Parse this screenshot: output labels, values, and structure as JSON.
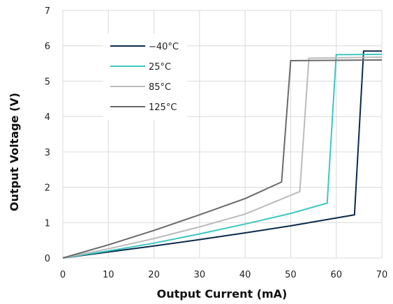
{
  "chart_data": {
    "type": "line",
    "title": "",
    "xlabel": "Output Current (mA)",
    "ylabel": "Output Voltage (V)",
    "xlim": [
      0,
      70
    ],
    "ylim": [
      0,
      7
    ],
    "xticks": [
      "0",
      "10",
      "20",
      "30",
      "40",
      "50",
      "60",
      "70"
    ],
    "yticks": [
      "0",
      "1",
      "2",
      "3",
      "4",
      "5",
      "6",
      "7"
    ],
    "grid": true,
    "legend_position": "top-left",
    "series": [
      {
        "name": "−40°C",
        "color": "#0b2a4a",
        "points": [
          [
            0,
            0
          ],
          [
            10,
            0.17
          ],
          [
            20,
            0.34
          ],
          [
            30,
            0.52
          ],
          [
            40,
            0.71
          ],
          [
            50,
            0.91
          ],
          [
            64,
            1.22
          ],
          [
            66,
            5.85
          ],
          [
            70,
            5.85
          ]
        ]
      },
      {
        "name": "25°C",
        "color": "#3cc7c0",
        "points": [
          [
            0,
            0
          ],
          [
            10,
            0.2
          ],
          [
            20,
            0.42
          ],
          [
            30,
            0.68
          ],
          [
            40,
            0.96
          ],
          [
            50,
            1.26
          ],
          [
            58,
            1.55
          ],
          [
            60,
            5.75
          ],
          [
            70,
            5.76
          ]
        ]
      },
      {
        "name": "85°C",
        "color": "#bbbbbb",
        "points": [
          [
            0,
            0
          ],
          [
            10,
            0.26
          ],
          [
            20,
            0.55
          ],
          [
            30,
            0.88
          ],
          [
            40,
            1.24
          ],
          [
            52,
            1.88
          ],
          [
            54,
            5.65
          ],
          [
            70,
            5.68
          ]
        ]
      },
      {
        "name": "125°C",
        "color": "#6a6a6a",
        "points": [
          [
            0,
            0
          ],
          [
            10,
            0.37
          ],
          [
            20,
            0.78
          ],
          [
            30,
            1.22
          ],
          [
            40,
            1.68
          ],
          [
            48,
            2.15
          ],
          [
            50,
            5.58
          ],
          [
            70,
            5.6
          ]
        ]
      }
    ]
  }
}
